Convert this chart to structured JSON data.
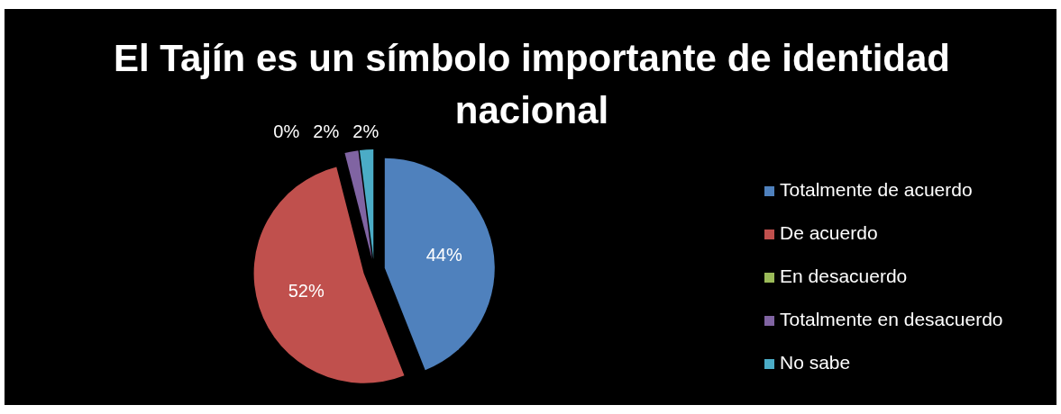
{
  "chart_data": {
    "type": "pie",
    "title": "El Tajín es un símbolo importante de identidad nacional",
    "categories": [
      "Totalmente de acuerdo",
      "De acuerdo",
      "En desacuerdo",
      "Totalmente en desacuerdo",
      "No sabe"
    ],
    "values": [
      44,
      52,
      0,
      2,
      2
    ],
    "colors": [
      "#4f81bd",
      "#c0504d",
      "#9bbb59",
      "#8064a2",
      "#4bacc6"
    ],
    "value_labels": [
      "44%",
      "52%",
      "0%",
      "2%",
      "2%"
    ],
    "data_labels": true,
    "legend": "right"
  }
}
